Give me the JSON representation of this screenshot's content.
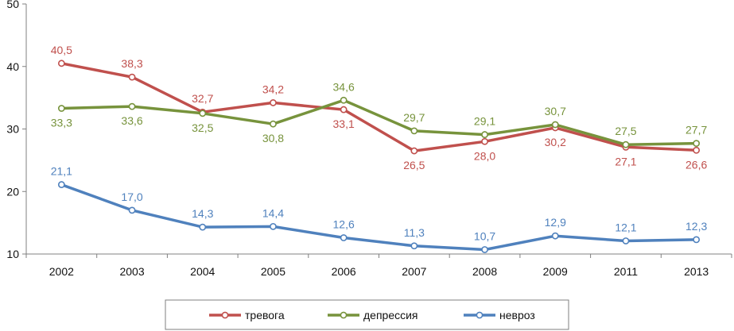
{
  "chart_data": {
    "type": "line",
    "title": "",
    "xlabel": "",
    "ylabel": "",
    "categories": [
      "2002",
      "2003",
      "2004",
      "2005",
      "2006",
      "2007",
      "2008",
      "2009",
      "2011",
      "2013"
    ],
    "ylim": [
      10,
      50
    ],
    "yticks": [
      "10",
      "20",
      "30",
      "40",
      "50"
    ],
    "grid": false,
    "legend_position": "bottom",
    "series": [
      {
        "name": "тревога",
        "color": "#c0504d",
        "values": [
          40.5,
          38.3,
          32.7,
          34.2,
          33.1,
          26.5,
          28.0,
          30.2,
          27.1,
          26.6
        ],
        "labels": [
          "40,5",
          "38,3",
          "32,7",
          "34,2",
          "33,1",
          "26,5",
          "28,0",
          "30,2",
          "27,1",
          "26,6"
        ],
        "label_pos": [
          "above",
          "above",
          "above",
          "above",
          "below",
          "below",
          "below",
          "below",
          "below",
          "below"
        ]
      },
      {
        "name": "депрессия",
        "color": "#77933c",
        "values": [
          33.3,
          33.6,
          32.5,
          30.8,
          34.6,
          29.7,
          29.1,
          30.7,
          27.5,
          27.7
        ],
        "labels": [
          "33,3",
          "33,6",
          "32,5",
          "30,8",
          "34,6",
          "29,7",
          "29,1",
          "30,7",
          "27,5",
          "27,7"
        ],
        "label_pos": [
          "below",
          "below",
          "below",
          "below",
          "above",
          "above",
          "above",
          "above",
          "above",
          "above"
        ]
      },
      {
        "name": "невроз",
        "color": "#4f81bd",
        "values": [
          21.1,
          17.0,
          14.3,
          14.4,
          12.6,
          11.3,
          10.7,
          12.9,
          12.1,
          12.3
        ],
        "labels": [
          "21,1",
          "17,0",
          "14,3",
          "14,4",
          "12,6",
          "11,3",
          "10,7",
          "12,9",
          "12,1",
          "12,3"
        ],
        "label_pos": [
          "above",
          "above",
          "above",
          "above",
          "above",
          "above",
          "above",
          "above",
          "above",
          "above"
        ]
      }
    ]
  }
}
